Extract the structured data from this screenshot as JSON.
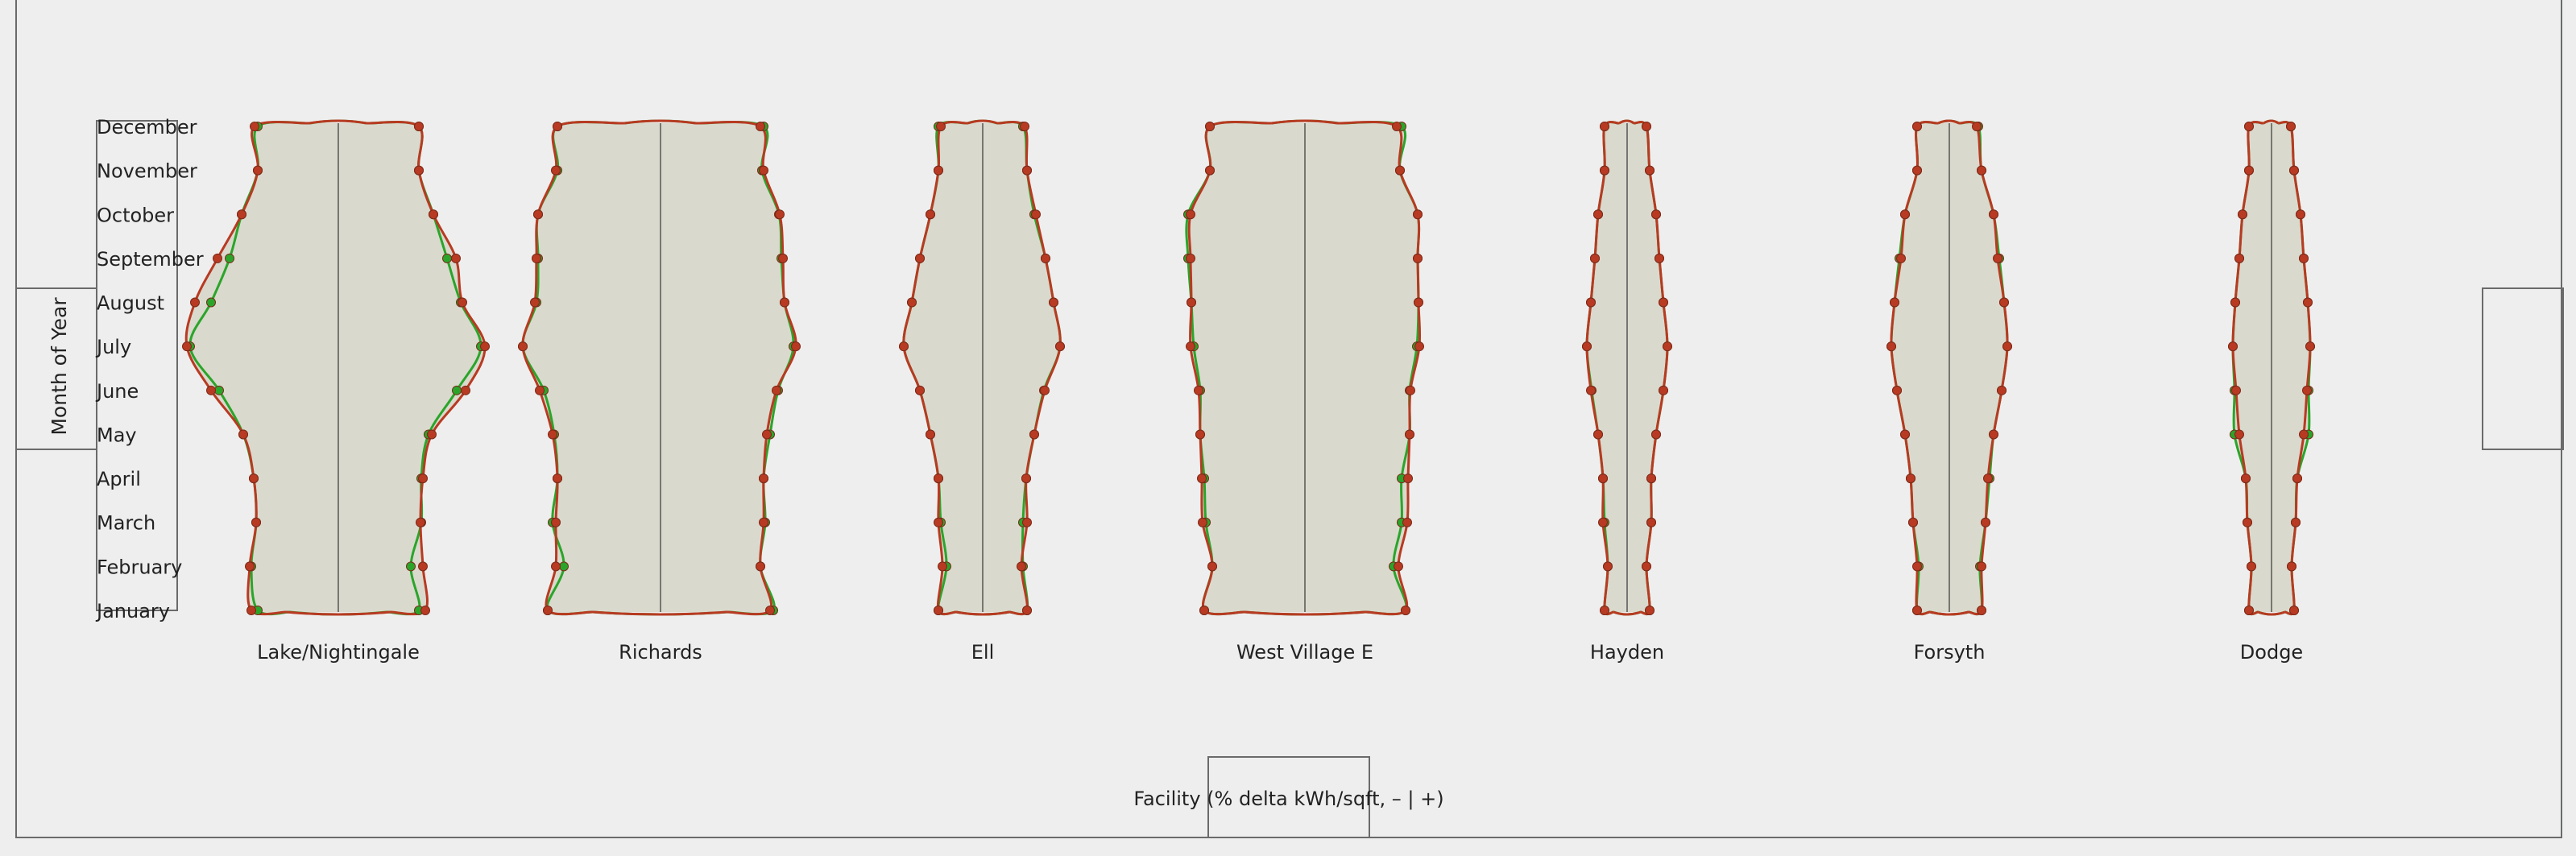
{
  "chart_data": {
    "type": "violin",
    "title": "",
    "xlabel": "Facility (% delta kWh/sqft, – | +)",
    "ylabel": "Month of Year",
    "months": [
      "January",
      "February",
      "March",
      "April",
      "May",
      "June",
      "July",
      "August",
      "September",
      "October",
      "November",
      "December"
    ],
    "series": [
      {
        "color": "#2aa52a",
        "role": "green-outline"
      },
      {
        "color": "#b83a22",
        "role": "red-outline"
      }
    ],
    "facilities": [
      {
        "name": "Lake/Nightingale",
        "green": [
          [
            100,
            100
          ],
          [
            108,
            90
          ],
          [
            102,
            103
          ],
          [
            105,
            103
          ],
          [
            118,
            112
          ],
          [
            148,
            147
          ],
          [
            184,
            177
          ],
          [
            158,
            152
          ],
          [
            135,
            135
          ],
          [
            120,
            118
          ],
          [
            100,
            100
          ],
          [
            100,
            100
          ]
        ],
        "red": [
          [
            108,
            108
          ],
          [
            110,
            105
          ],
          [
            102,
            102
          ],
          [
            105,
            105
          ],
          [
            118,
            116
          ],
          [
            158,
            158
          ],
          [
            188,
            182
          ],
          [
            178,
            154
          ],
          [
            150,
            146
          ],
          [
            120,
            118
          ],
          [
            100,
            100
          ],
          [
            104,
            100
          ]
        ]
      },
      {
        "name": "Richards",
        "green": [
          [
            140,
            140
          ],
          [
            120,
            124
          ],
          [
            134,
            130
          ],
          [
            128,
            128
          ],
          [
            132,
            136
          ],
          [
            145,
            146
          ],
          [
            171,
            165
          ],
          [
            154,
            154
          ],
          [
            152,
            150
          ],
          [
            152,
            147
          ],
          [
            128,
            126
          ],
          [
            128,
            128
          ]
        ],
        "red": [
          [
            140,
            136
          ],
          [
            130,
            124
          ],
          [
            130,
            128
          ],
          [
            128,
            128
          ],
          [
            134,
            132
          ],
          [
            150,
            144
          ],
          [
            171,
            168
          ],
          [
            156,
            154
          ],
          [
            154,
            152
          ],
          [
            152,
            148
          ],
          [
            130,
            128
          ],
          [
            128,
            124
          ]
        ]
      },
      {
        "name": "Ell",
        "green": [
          [
            55,
            55
          ],
          [
            45,
            50
          ],
          [
            52,
            50
          ],
          [
            55,
            54
          ],
          [
            65,
            64
          ],
          [
            78,
            76
          ],
          [
            98,
            96
          ],
          [
            88,
            88
          ],
          [
            78,
            78
          ],
          [
            65,
            64
          ],
          [
            55,
            55
          ],
          [
            55,
            50
          ]
        ],
        "red": [
          [
            55,
            55
          ],
          [
            50,
            48
          ],
          [
            55,
            55
          ],
          [
            55,
            54
          ],
          [
            65,
            64
          ],
          [
            78,
            77
          ],
          [
            98,
            96
          ],
          [
            88,
            88
          ],
          [
            78,
            78
          ],
          [
            65,
            66
          ],
          [
            55,
            55
          ],
          [
            52,
            52
          ]
        ]
      },
      {
        "name": "West Village E",
        "green": [
          [
            125,
            125
          ],
          [
            115,
            110
          ],
          [
            123,
            120
          ],
          [
            125,
            120
          ],
          [
            130,
            130
          ],
          [
            130,
            130
          ],
          [
            138,
            139
          ],
          [
            141,
            141
          ],
          [
            145,
            140
          ],
          [
            145,
            140
          ],
          [
            118,
            118
          ],
          [
            118,
            120
          ]
        ],
        "red": [
          [
            125,
            125
          ],
          [
            115,
            116
          ],
          [
            127,
            127
          ],
          [
            128,
            128
          ],
          [
            130,
            130
          ],
          [
            132,
            131
          ],
          [
            142,
            142
          ],
          [
            141,
            141
          ],
          [
            142,
            140
          ],
          [
            142,
            140
          ],
          [
            118,
            118
          ],
          [
            118,
            114
          ]
        ]
      },
      {
        "name": "Hayden",
        "green": [
          [
            28,
            28
          ],
          [
            24,
            24
          ],
          [
            28,
            30
          ],
          [
            30,
            30
          ],
          [
            36,
            36
          ],
          [
            44,
            45
          ],
          [
            50,
            50
          ],
          [
            45,
            45
          ],
          [
            40,
            40
          ],
          [
            36,
            36
          ],
          [
            28,
            28
          ],
          [
            28,
            24
          ]
        ],
        "red": [
          [
            28,
            28
          ],
          [
            24,
            24
          ],
          [
            30,
            30
          ],
          [
            30,
            30
          ],
          [
            36,
            36
          ],
          [
            45,
            45
          ],
          [
            50,
            50
          ],
          [
            45,
            45
          ],
          [
            40,
            40
          ],
          [
            36,
            36
          ],
          [
            28,
            28
          ],
          [
            28,
            24
          ]
        ]
      },
      {
        "name": "Forsyth",
        "green": [
          [
            40,
            40
          ],
          [
            38,
            38
          ],
          [
            45,
            45
          ],
          [
            48,
            50
          ],
          [
            55,
            55
          ],
          [
            65,
            65
          ],
          [
            72,
            72
          ],
          [
            68,
            68
          ],
          [
            62,
            62
          ],
          [
            55,
            55
          ],
          [
            40,
            40
          ],
          [
            40,
            36
          ]
        ],
        "red": [
          [
            40,
            40
          ],
          [
            40,
            40
          ],
          [
            45,
            45
          ],
          [
            48,
            48
          ],
          [
            55,
            55
          ],
          [
            65,
            65
          ],
          [
            72,
            72
          ],
          [
            68,
            68
          ],
          [
            60,
            60
          ],
          [
            55,
            55
          ],
          [
            40,
            40
          ],
          [
            40,
            34
          ]
        ]
      },
      {
        "name": "Dodge",
        "green": [
          [
            28,
            28
          ],
          [
            25,
            25
          ],
          [
            30,
            30
          ],
          [
            32,
            32
          ],
          [
            46,
            46
          ],
          [
            46,
            46
          ],
          [
            48,
            48
          ],
          [
            45,
            45
          ],
          [
            40,
            40
          ],
          [
            36,
            36
          ],
          [
            28,
            28
          ],
          [
            28,
            24
          ]
        ],
        "red": [
          [
            28,
            28
          ],
          [
            25,
            25
          ],
          [
            30,
            30
          ],
          [
            32,
            32
          ],
          [
            40,
            40
          ],
          [
            44,
            44
          ],
          [
            48,
            48
          ],
          [
            45,
            45
          ],
          [
            40,
            40
          ],
          [
            36,
            36
          ],
          [
            28,
            28
          ],
          [
            28,
            24
          ]
        ]
      }
    ]
  }
}
